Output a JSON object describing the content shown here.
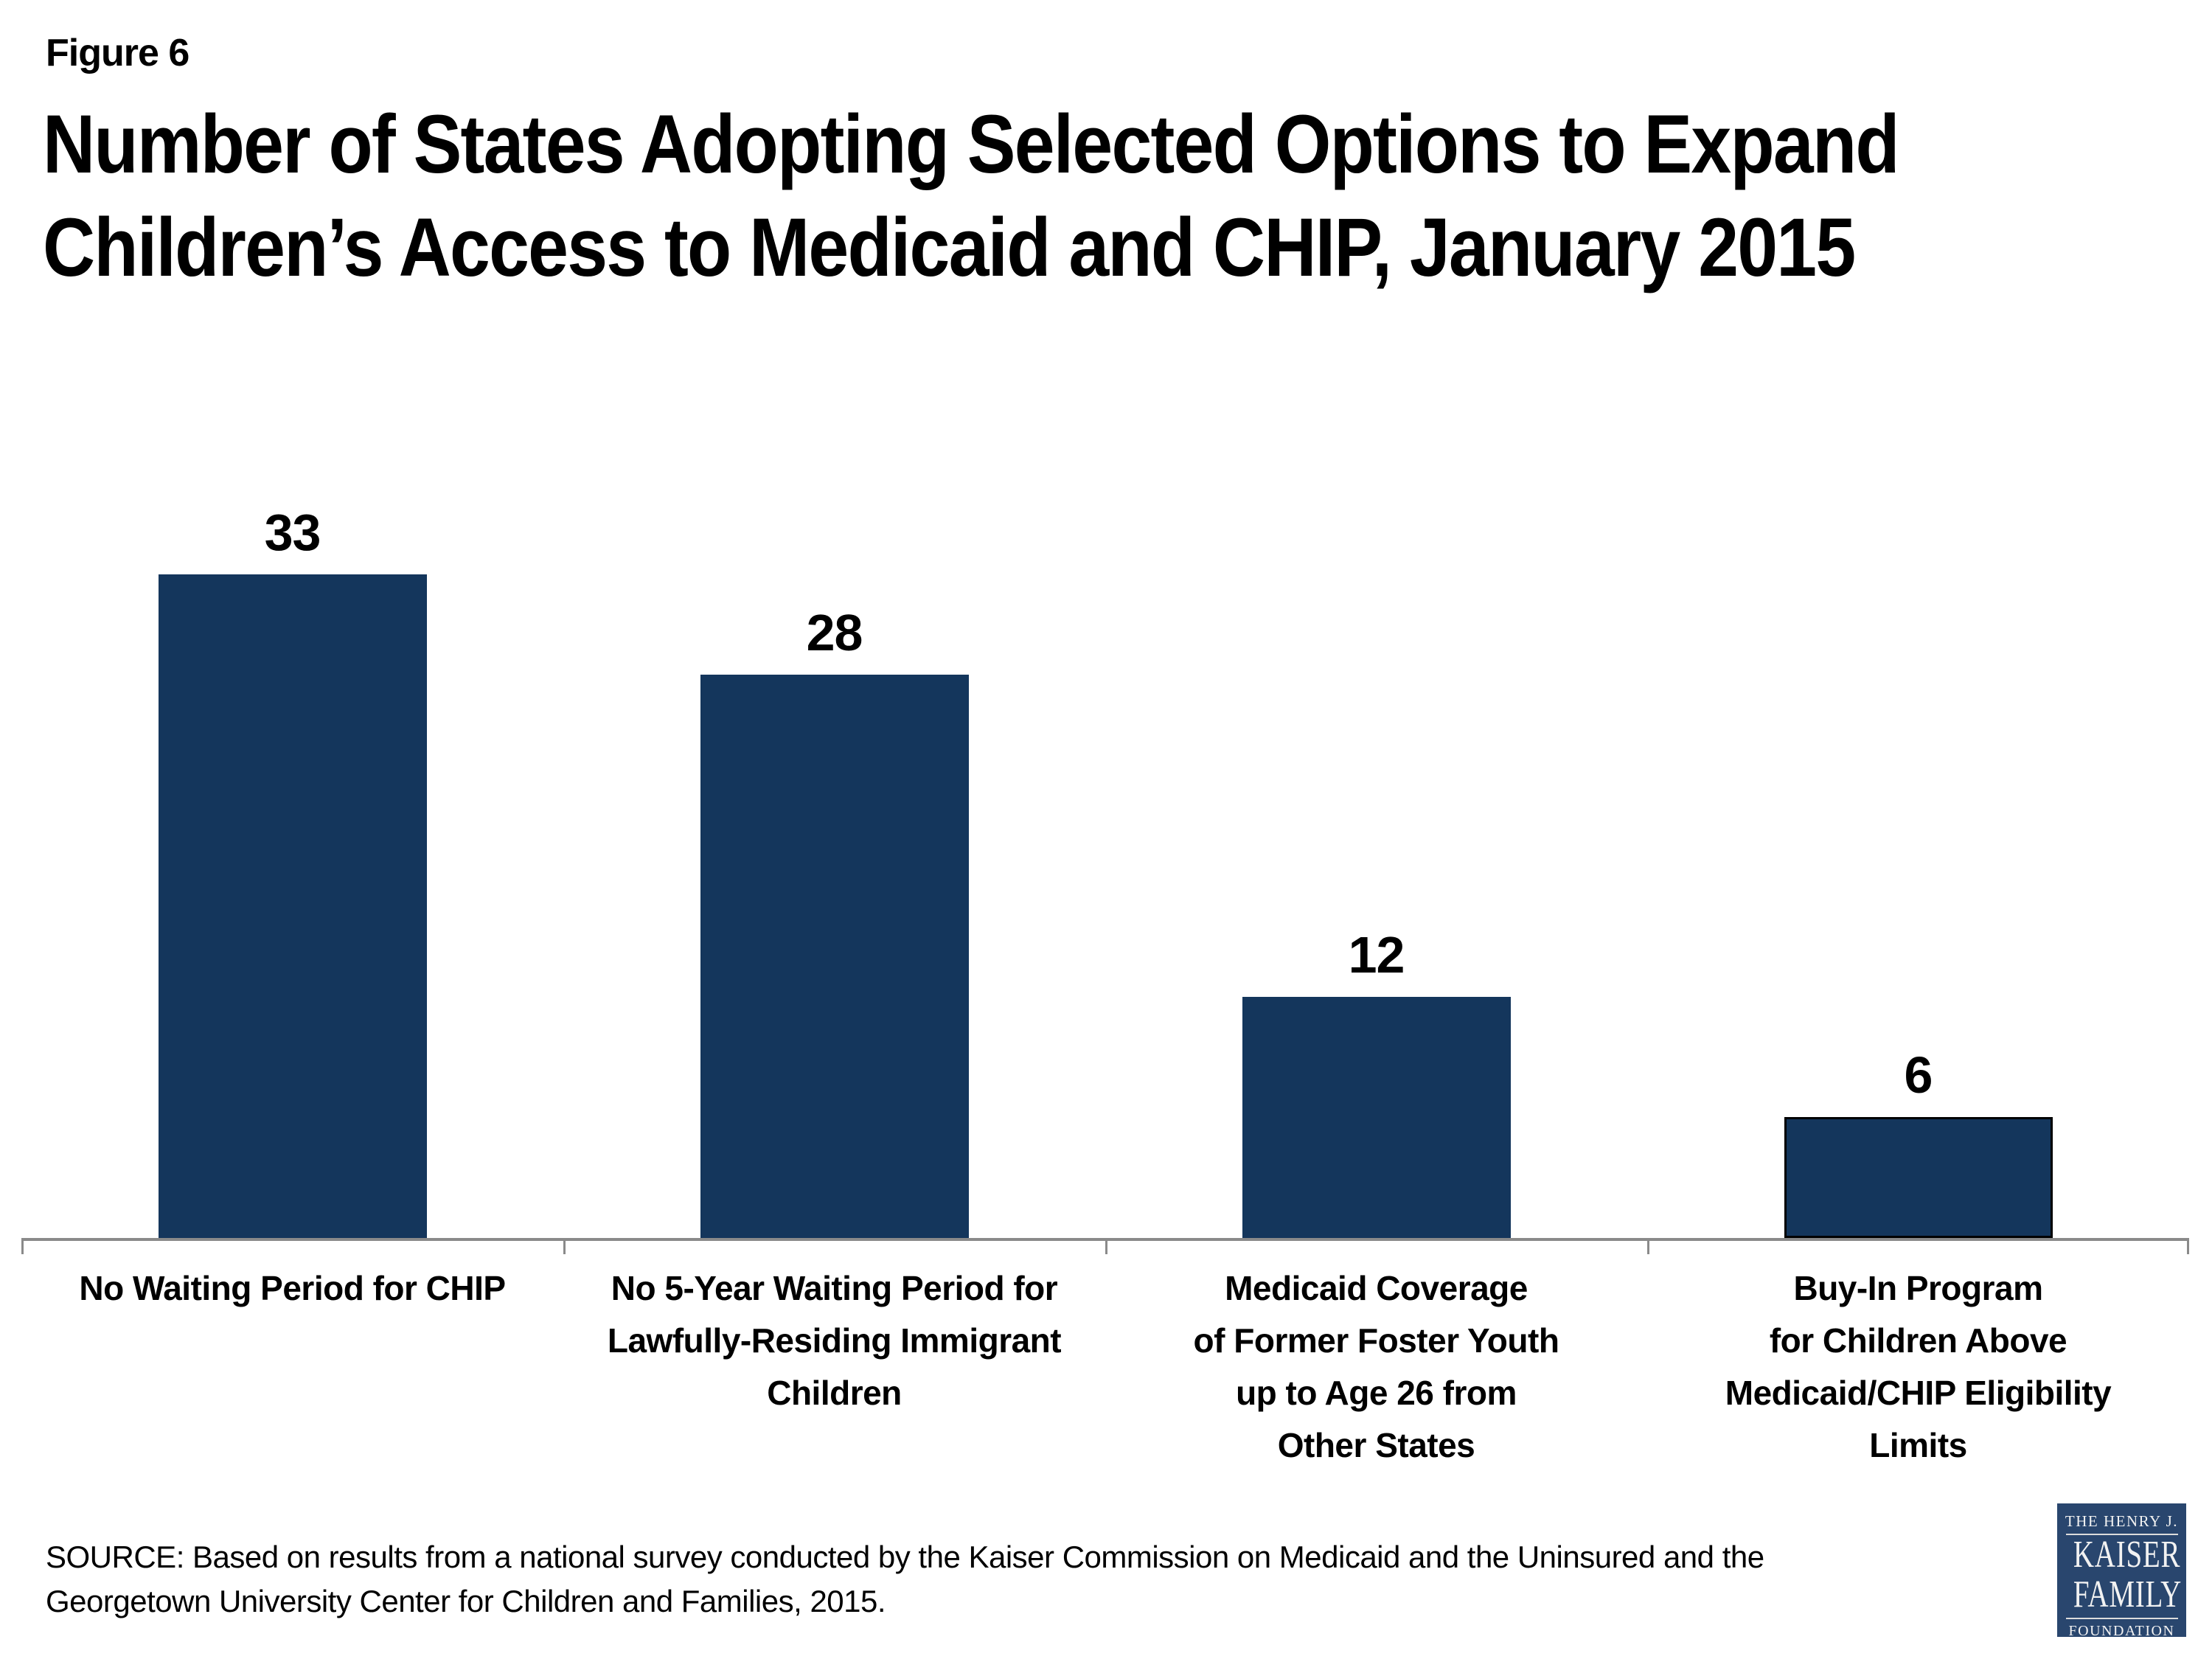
{
  "header": {
    "figure_label": "Figure 6",
    "title": "Number of States Adopting Selected Options to Expand\nChildren’s Access to Medicaid and CHIP, January 2015"
  },
  "chart_data": {
    "type": "bar",
    "title": "Number of States Adopting Selected Options to Expand Children’s Access to Medicaid and CHIP, January 2015",
    "categories": [
      "No Waiting Period for CHIP",
      "No 5-Year Waiting Period for\nLawfully-Residing Immigrant\nChildren",
      "Medicaid Coverage\nof Former Foster Youth\nup to Age 26 from\nOther States",
      "Buy-In Program\nfor Children Above\nMedicaid/CHIP Eligibility\nLimits"
    ],
    "values": [
      33,
      28,
      12,
      6
    ],
    "xlabel": "",
    "ylabel": "",
    "ylim": [
      0,
      33
    ],
    "grid": false,
    "legend": false,
    "data_labels": true,
    "bar_color": "#14365C",
    "outlined_bar_index": 3,
    "axis_color": "#8A8A8A"
  },
  "footer": {
    "source": "SOURCE: Based on results from a national survey conducted by the Kaiser Commission on Medicaid and the Uninsured and the\nGeorgetown University Center for Children and Families, 2015.",
    "logo": {
      "line1": "THE HENRY J.",
      "line2": "KAISER",
      "line3": "FAMILY",
      "line4": "FOUNDATION",
      "bg_color": "#29466E"
    }
  }
}
